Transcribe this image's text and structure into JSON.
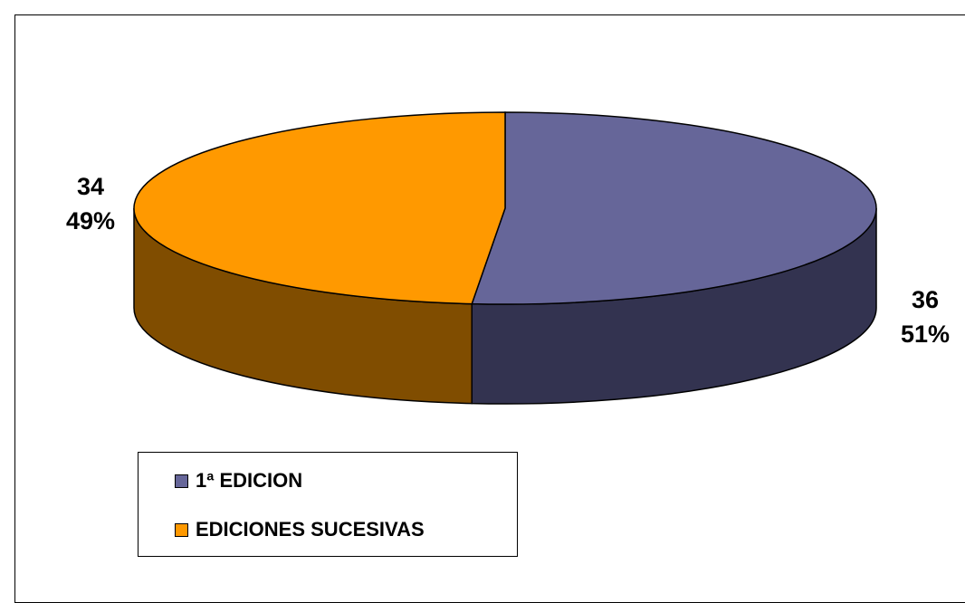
{
  "chart_data": {
    "type": "pie",
    "style": "3d",
    "categories": [
      "1ª EDICION",
      "EDICIONES SUCESIVAS"
    ],
    "values": [
      36,
      34
    ],
    "percentages": [
      "51%",
      "49%"
    ],
    "value_labels": [
      "36",
      "34"
    ],
    "colors": {
      "top": [
        "#666699",
        "#FF9900"
      ],
      "side": [
        "#333350",
        "#804D00"
      ]
    },
    "legend_position": "bottom-left"
  }
}
